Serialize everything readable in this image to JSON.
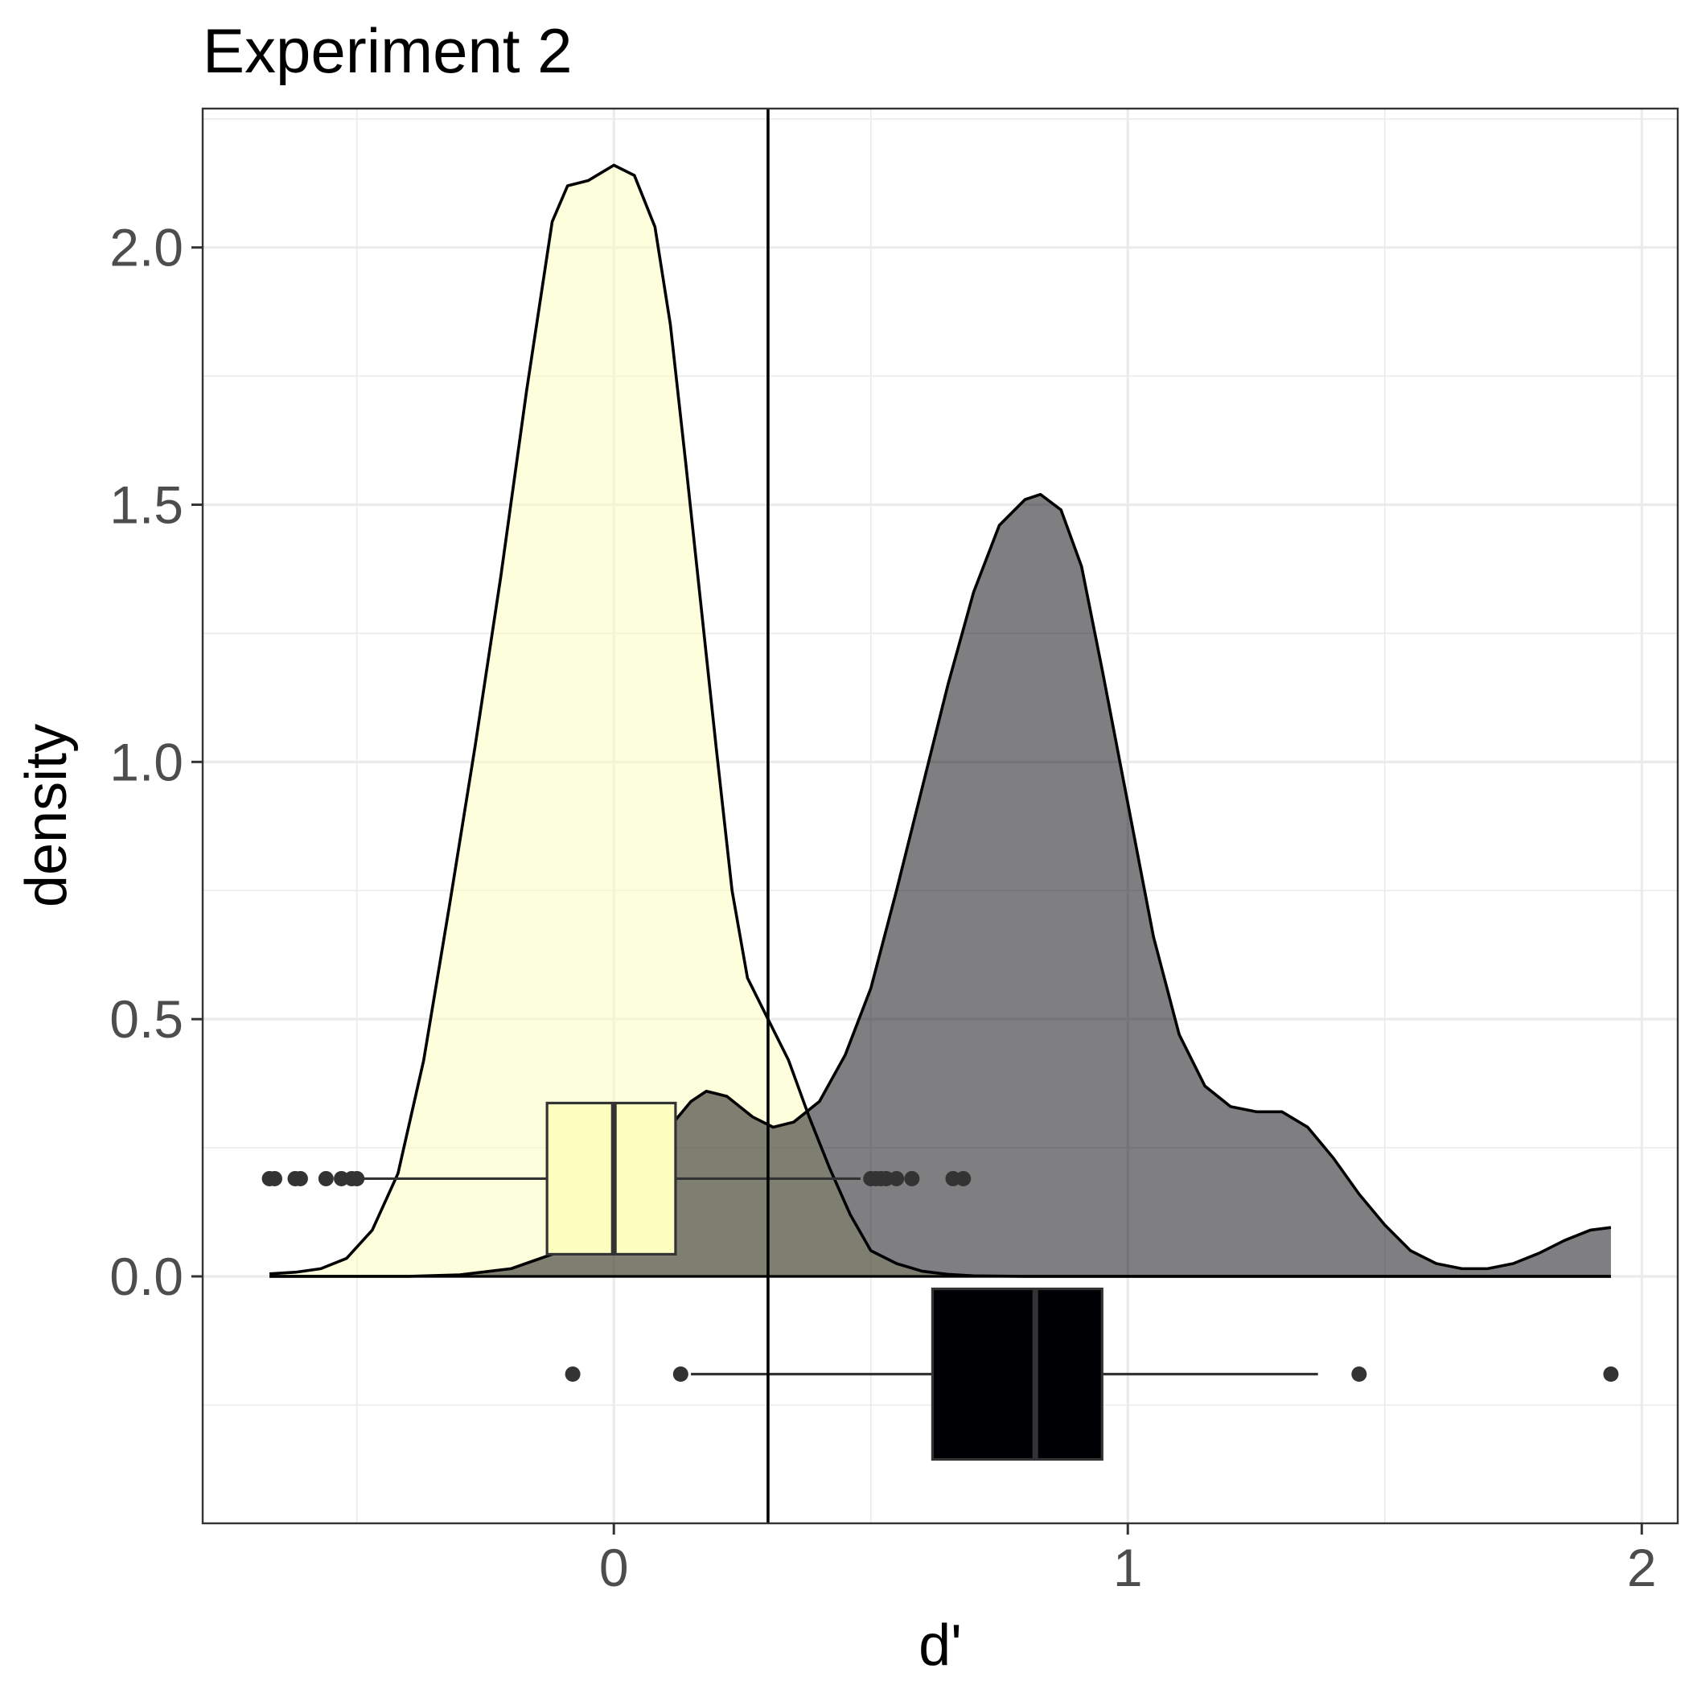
{
  "chart_data": {
    "type": "density",
    "title": "Experiment 2",
    "xlabel": "d'",
    "ylabel": "density",
    "xlim": [
      -0.8,
      2.07
    ],
    "ylim": [
      -0.48,
      2.27
    ],
    "x_ticks": [
      0,
      1,
      2
    ],
    "y_ticks": [
      0.0,
      0.5,
      1.0,
      1.5,
      2.0
    ],
    "grid": true,
    "legend": "none",
    "reference_line_x": 0.3,
    "series": [
      {
        "fill": "#FCFDBF",
        "fill_opacity": 0.55,
        "line_color": "#000000",
        "density": [
          [
            -0.67,
            0.005
          ],
          [
            -0.62,
            0.008
          ],
          [
            -0.57,
            0.015
          ],
          [
            -0.52,
            0.035
          ],
          [
            -0.47,
            0.09
          ],
          [
            -0.42,
            0.2
          ],
          [
            -0.37,
            0.42
          ],
          [
            -0.32,
            0.72
          ],
          [
            -0.27,
            1.03
          ],
          [
            -0.22,
            1.36
          ],
          [
            -0.17,
            1.72
          ],
          [
            -0.12,
            2.05
          ],
          [
            -0.09,
            2.12
          ],
          [
            -0.05,
            2.13
          ],
          [
            0.0,
            2.16
          ],
          [
            0.04,
            2.14
          ],
          [
            0.08,
            2.04
          ],
          [
            0.11,
            1.85
          ],
          [
            0.14,
            1.58
          ],
          [
            0.17,
            1.3
          ],
          [
            0.2,
            1.02
          ],
          [
            0.23,
            0.75
          ],
          [
            0.26,
            0.58
          ],
          [
            0.3,
            0.5
          ],
          [
            0.34,
            0.42
          ],
          [
            0.38,
            0.31
          ],
          [
            0.42,
            0.21
          ],
          [
            0.46,
            0.12
          ],
          [
            0.5,
            0.05
          ],
          [
            0.55,
            0.025
          ],
          [
            0.6,
            0.01
          ],
          [
            0.65,
            0.004
          ],
          [
            0.7,
            0.001
          ],
          [
            0.8,
            0.0
          ],
          [
            1.0,
            0.0
          ],
          [
            1.5,
            0.0
          ],
          [
            1.94,
            0.0
          ]
        ],
        "box": {
          "y_position": 0.19,
          "min": -0.49,
          "q1": -0.13,
          "median": 0.0,
          "q3": 0.12,
          "max": 0.48,
          "outliers": [
            -0.67,
            -0.66,
            -0.62,
            -0.61,
            -0.56,
            -0.53,
            -0.51,
            -0.5,
            0.5,
            0.51,
            0.52,
            0.53,
            0.55,
            0.58,
            0.66,
            0.68
          ]
        }
      },
      {
        "fill": "#000004",
        "fill_opacity": 0.5,
        "line_color": "#000000",
        "density": [
          [
            -0.67,
            0.0
          ],
          [
            -0.4,
            0.0
          ],
          [
            -0.3,
            0.003
          ],
          [
            -0.2,
            0.015
          ],
          [
            -0.1,
            0.05
          ],
          [
            -0.05,
            0.09
          ],
          [
            0.0,
            0.13
          ],
          [
            0.05,
            0.2
          ],
          [
            0.1,
            0.28
          ],
          [
            0.15,
            0.34
          ],
          [
            0.18,
            0.36
          ],
          [
            0.22,
            0.35
          ],
          [
            0.27,
            0.31
          ],
          [
            0.31,
            0.29
          ],
          [
            0.35,
            0.3
          ],
          [
            0.4,
            0.34
          ],
          [
            0.45,
            0.43
          ],
          [
            0.5,
            0.56
          ],
          [
            0.55,
            0.75
          ],
          [
            0.6,
            0.95
          ],
          [
            0.65,
            1.15
          ],
          [
            0.7,
            1.33
          ],
          [
            0.75,
            1.46
          ],
          [
            0.8,
            1.51
          ],
          [
            0.83,
            1.52
          ],
          [
            0.87,
            1.49
          ],
          [
            0.91,
            1.38
          ],
          [
            0.95,
            1.18
          ],
          [
            1.0,
            0.92
          ],
          [
            1.05,
            0.66
          ],
          [
            1.1,
            0.47
          ],
          [
            1.15,
            0.37
          ],
          [
            1.2,
            0.33
          ],
          [
            1.25,
            0.32
          ],
          [
            1.3,
            0.32
          ],
          [
            1.35,
            0.29
          ],
          [
            1.4,
            0.23
          ],
          [
            1.45,
            0.16
          ],
          [
            1.5,
            0.1
          ],
          [
            1.55,
            0.05
          ],
          [
            1.6,
            0.025
          ],
          [
            1.65,
            0.015
          ],
          [
            1.7,
            0.015
          ],
          [
            1.75,
            0.025
          ],
          [
            1.8,
            0.045
          ],
          [
            1.85,
            0.07
          ],
          [
            1.9,
            0.09
          ],
          [
            1.94,
            0.095
          ]
        ],
        "box": {
          "y_position": -0.19,
          "min": 0.15,
          "q1": 0.62,
          "median": 0.82,
          "q3": 0.95,
          "max": 1.37,
          "outliers": [
            -0.08,
            0.13,
            1.45,
            1.94
          ]
        }
      }
    ]
  }
}
